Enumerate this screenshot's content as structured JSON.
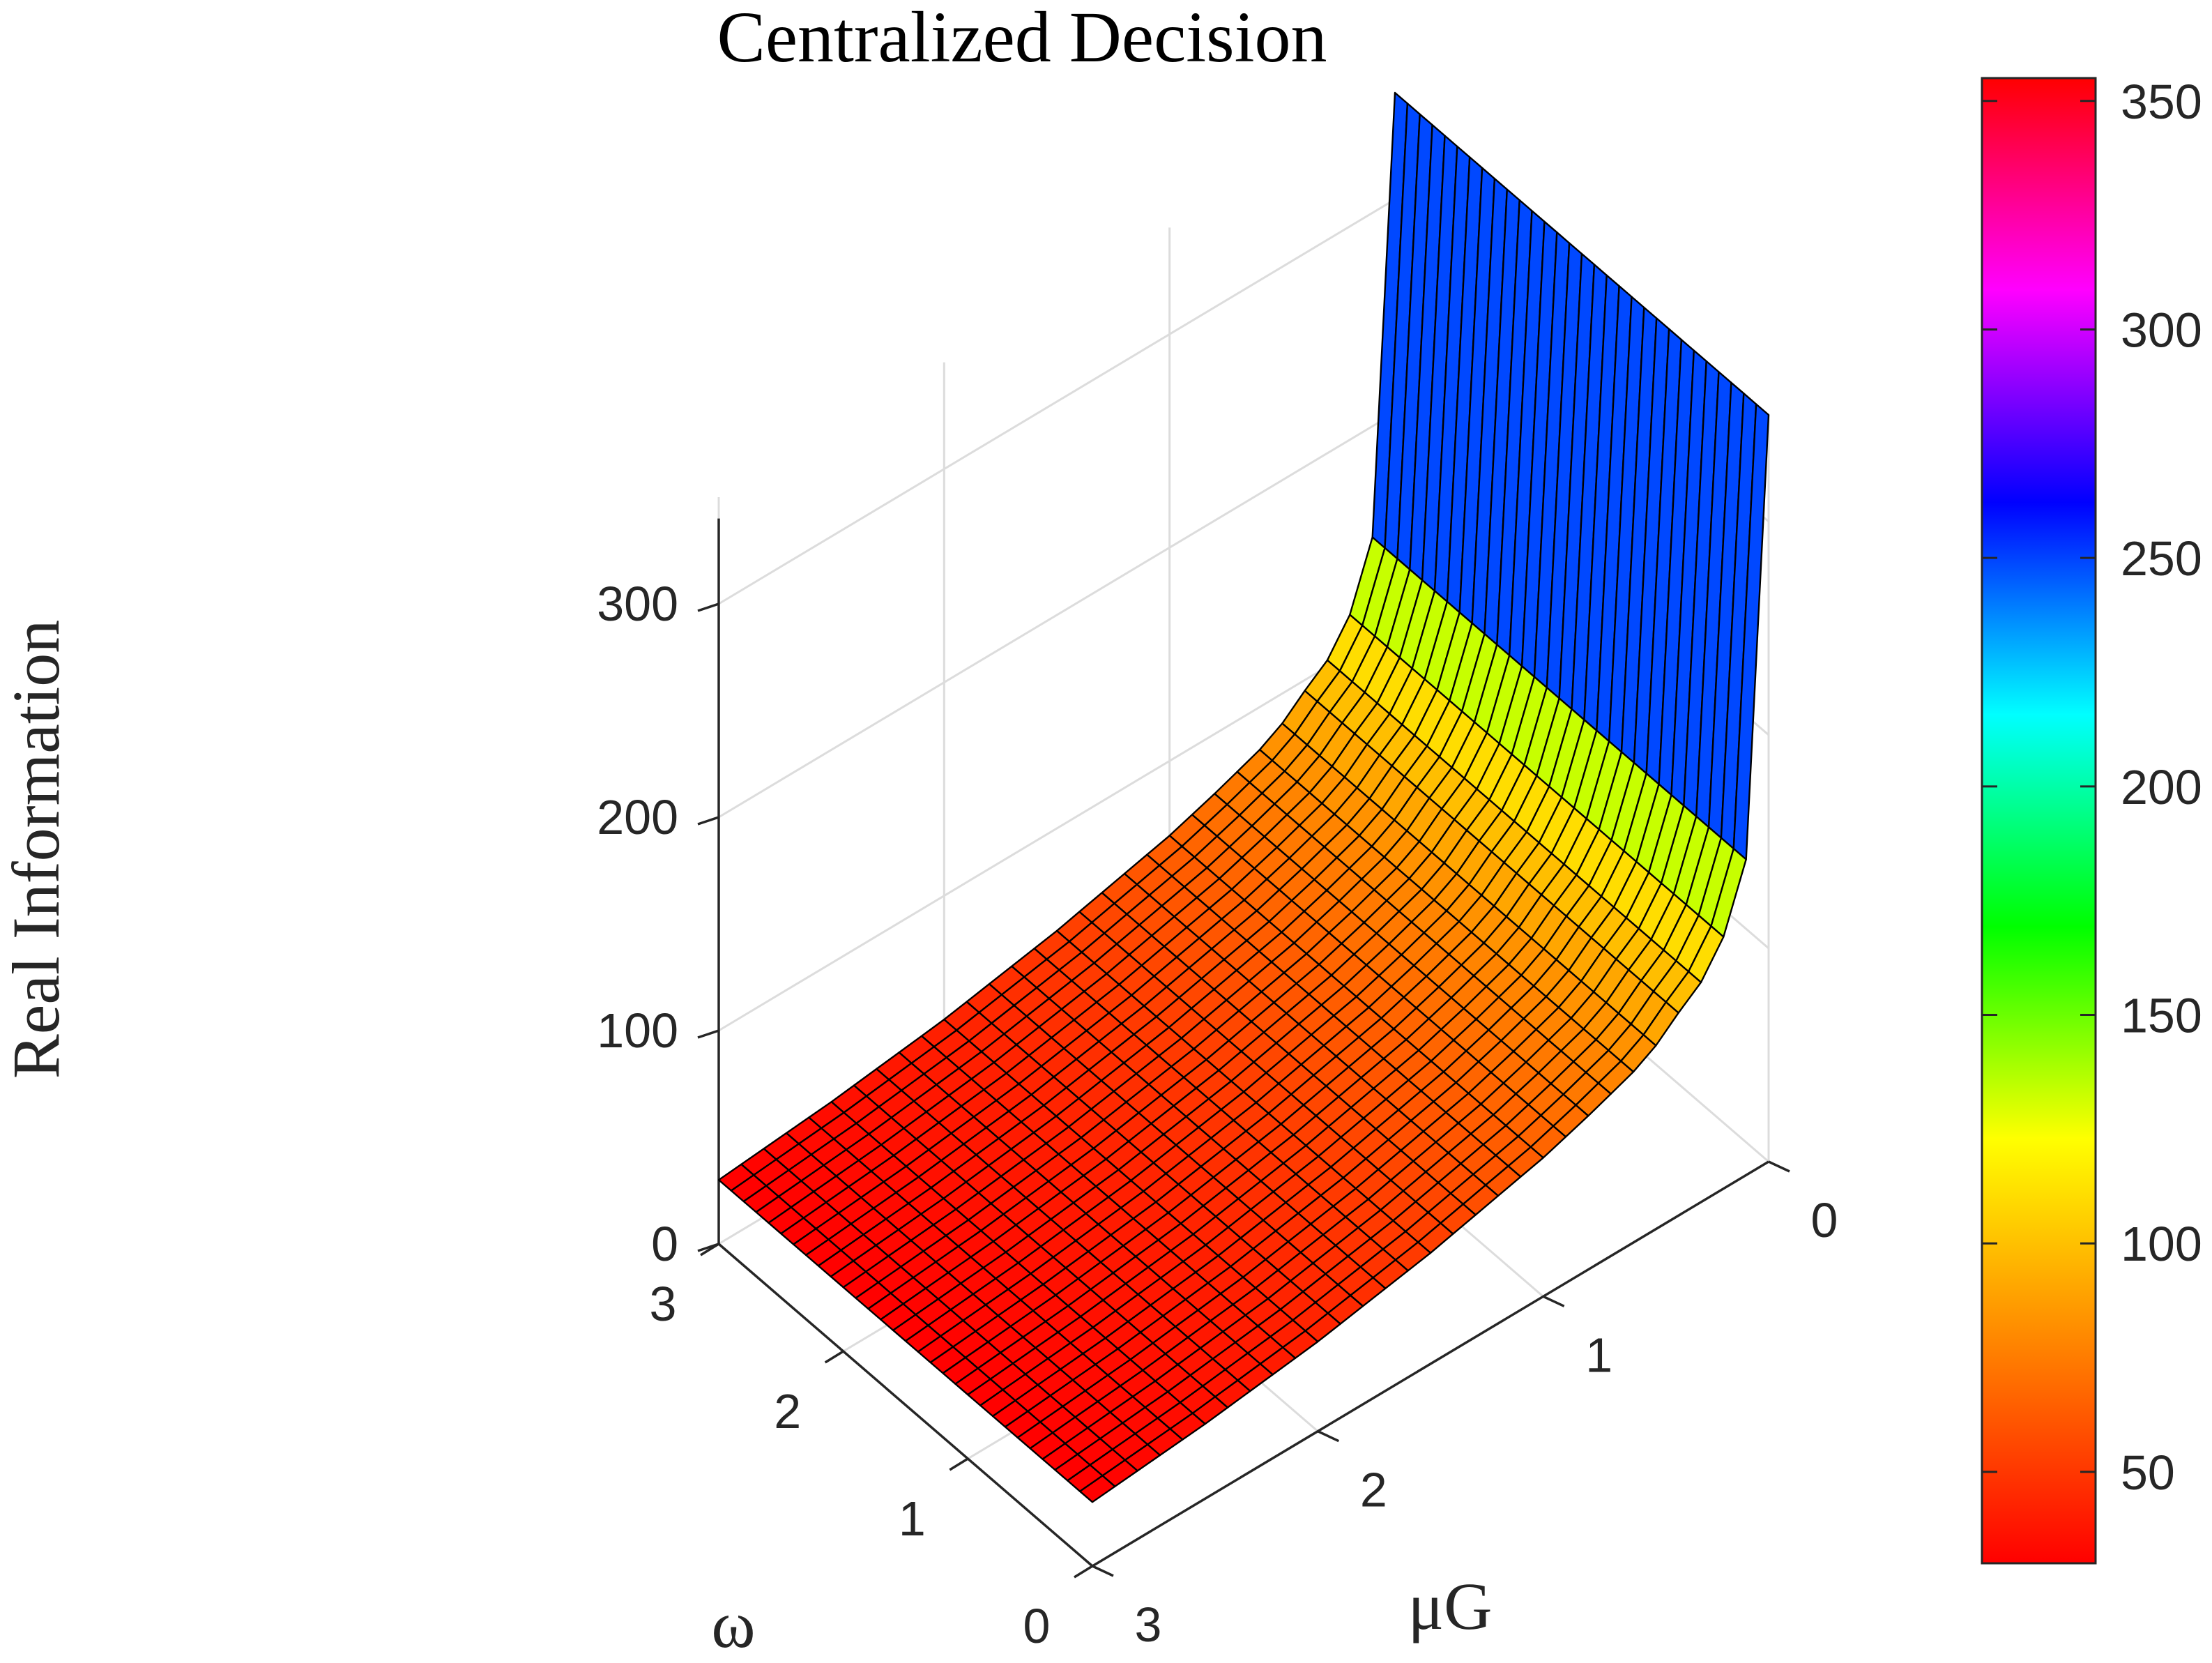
{
  "chart_data": {
    "type": "surface",
    "title": "Centralized Decision",
    "xlabel": "ω",
    "ylabel": "μG",
    "zlabel": "Real Information",
    "x_ticks": [
      "0",
      "1",
      "2",
      "3"
    ],
    "y_ticks": [
      "0",
      "1",
      "2",
      "3"
    ],
    "z_ticks": [
      "0",
      "100",
      "200",
      "300"
    ],
    "xlim": [
      0,
      3
    ],
    "ylim": [
      0,
      3
    ],
    "zlim": [
      0,
      350
    ],
    "grid": true,
    "colormap": [
      "#ff0000",
      "#ff8000",
      "#ffff00",
      "#00ff00",
      "#00ffff",
      "#0000ff",
      "#ff00ff",
      "#ff0000"
    ],
    "colorbar": {
      "placement": "right",
      "range": [
        30,
        355
      ],
      "ticks": [
        "50",
        "100",
        "150",
        "200",
        "250",
        "300",
        "350"
      ],
      "tick_values": [
        50,
        100,
        150,
        200,
        250,
        300,
        350
      ]
    },
    "surface_profile": {
      "description_axis": "μG",
      "mu_g": [
        3.0,
        2.5,
        2.0,
        1.5,
        1.0,
        0.8,
        0.6,
        0.5,
        0.4,
        0.3,
        0.25,
        0.2,
        0.15,
        0.1,
        0.07,
        0.0
      ],
      "z": [
        30,
        35,
        42,
        52,
        65,
        72,
        80,
        86,
        95,
        103,
        109,
        118,
        130,
        148,
        190,
        350
      ]
    }
  }
}
